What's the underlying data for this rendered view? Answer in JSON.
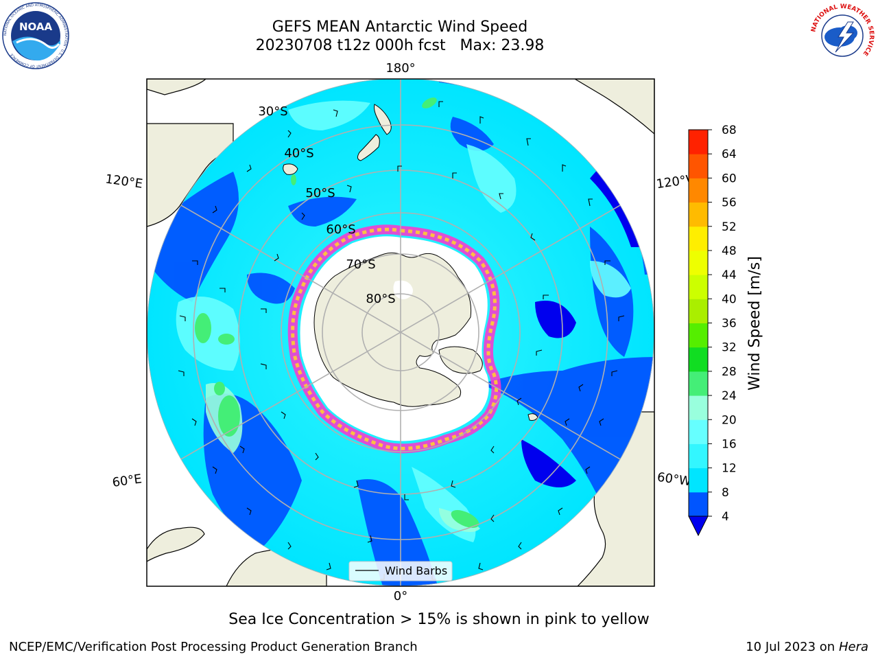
{
  "figure": {
    "title_line1": "GEFS MEAN Antarctic Wind Speed",
    "title_line2": "20230708 t12z 000h fcst   Max: 23.98",
    "caption": "Sea Ice Concentration > 15% is shown in pink to yellow",
    "footer_left": "NCEP/EMC/Verification Post Processing Product Generation Branch",
    "footer_right_date": "10 Jul 2023 on ",
    "footer_right_machine": "Hera",
    "noaa_logo_text": "NOAA",
    "noaa_ring_text": "NATIONAL OCEANIC AND ATMOSPHERIC ADMINISTRATION · U.S. DEPARTMENT OF COMMERCE",
    "nws_ring_text": "NATIONAL WEATHER SERVICE"
  },
  "map": {
    "projection": "south polar stereographic",
    "lon_labels": {
      "top": "180°",
      "bottom": "0°",
      "upper_left": "120°E",
      "upper_right": "120°W",
      "lower_left": "60°E",
      "lower_right": "60°W"
    },
    "lat_labels": [
      "30°S",
      "40°S",
      "50°S",
      "60°S",
      "70°S",
      "80°S"
    ],
    "legend_label": "Wind Barbs"
  },
  "colorbar": {
    "label": "Wind Speed [m/s]",
    "ticks": [
      "4",
      "8",
      "12",
      "16",
      "20",
      "24",
      "28",
      "32",
      "36",
      "40",
      "44",
      "48",
      "52",
      "56",
      "60",
      "64",
      "68"
    ],
    "colors": [
      "#0055ff",
      "#00e5ff",
      "#33f6ff",
      "#66ffff",
      "#99ffdd",
      "#44ee77",
      "#11dd22",
      "#55ee00",
      "#aaee00",
      "#ccff00",
      "#eeff00",
      "#ffee00",
      "#ffbb00",
      "#ff8800",
      "#ff5500",
      "#ff2200"
    ],
    "under_color": "#0000ee",
    "extend": "min"
  },
  "chart_data": {
    "type": "heatmap",
    "title": "GEFS MEAN Antarctic Wind Speed",
    "subtitle": "20230708 t12z 000h fcst   Max: 23.98",
    "variable": "Wind Speed [m/s]",
    "max_value": 23.98,
    "colorbar_range": [
      4,
      68
    ],
    "overlays": [
      "Wind Barbs",
      "Sea Ice Concentration > 15%"
    ]
  }
}
